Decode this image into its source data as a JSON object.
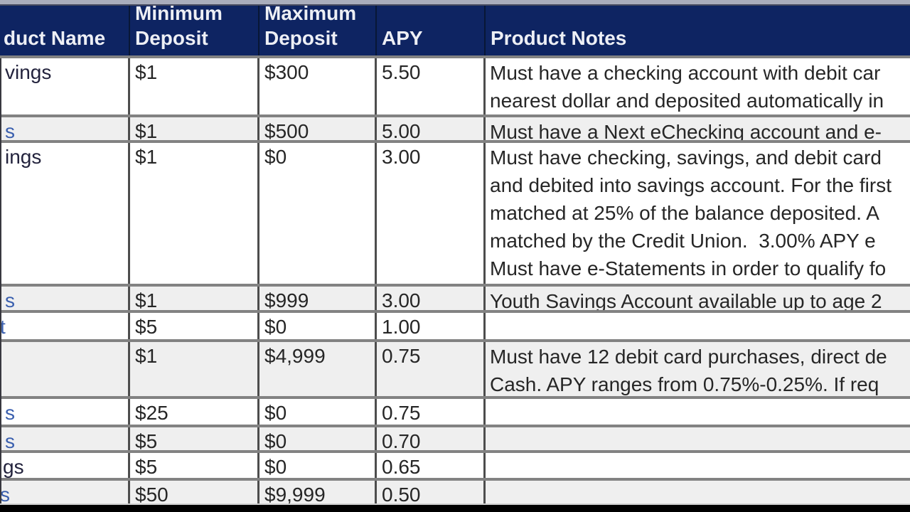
{
  "header": {
    "columns": [
      {
        "lines": [
          "duct Name"
        ]
      },
      {
        "lines": [
          "Minimum",
          "Deposit"
        ]
      },
      {
        "lines": [
          "Maximum",
          "Deposit"
        ]
      },
      {
        "lines": [
          "APY"
        ]
      },
      {
        "lines": [
          "Product Notes"
        ]
      }
    ]
  },
  "rows": [
    {
      "name": "vings",
      "link": false,
      "min": "$1",
      "max": "$300",
      "apy": "5.50",
      "notes": [
        "Must have a checking account with debit car",
        "nearest dollar and deposited automatically in"
      ]
    },
    {
      "name": "s",
      "link": true,
      "min": "$1",
      "max": "$500",
      "apy": "5.00",
      "notes": [
        "Must have a Next eChecking account and e-"
      ]
    },
    {
      "name": "ings",
      "link": false,
      "min": "$1",
      "max": "$0",
      "apy": "3.00",
      "notes": [
        "Must have checking, savings, and debit card",
        "and debited into savings account. For the first",
        "matched at 25% of the balance deposited. A",
        "matched by the Credit Union.  3.00% APY e",
        "Must have e-Statements in order to qualify fo"
      ]
    },
    {
      "name": "s",
      "link": true,
      "min": "$1",
      "max": "$999",
      "apy": "3.00",
      "notes": [
        "Youth Savings Account available up to age 2"
      ]
    },
    {
      "name": "t",
      "link": true,
      "min": "$5",
      "max": "$0",
      "apy": "1.00",
      "notes": []
    },
    {
      "name": "",
      "link": true,
      "min": "$1",
      "max": "$4,999",
      "apy": "0.75",
      "notes": [
        "Must have 12 debit card purchases, direct de",
        "Cash. APY ranges from 0.75%-0.25%. If req"
      ]
    },
    {
      "name": "s",
      "link": true,
      "min": "$25",
      "max": "$0",
      "apy": "0.75",
      "notes": []
    },
    {
      "name": "s",
      "link": true,
      "min": "$5",
      "max": "$0",
      "apy": "0.70",
      "notes": []
    },
    {
      "name": "gs",
      "link": false,
      "min": "$5",
      "max": "$0",
      "apy": "0.65",
      "notes": []
    },
    {
      "name": "s",
      "link": true,
      "min": "$50",
      "max": "$9,999",
      "apy": "0.50",
      "notes": []
    }
  ],
  "colors": {
    "header_bg": "#0e2462",
    "header_text": "#edeff5",
    "row_bg": "#ffffff",
    "row_alt_bg": "#efefef",
    "name_text_color": "#23233d",
    "link_color": "#3a5fae",
    "body_text": "#262626",
    "top_strip": "#a9adbc",
    "border_horizontal": "#828282",
    "border_vertical": "#4d4d4d",
    "bottom_bar": "#000000"
  }
}
